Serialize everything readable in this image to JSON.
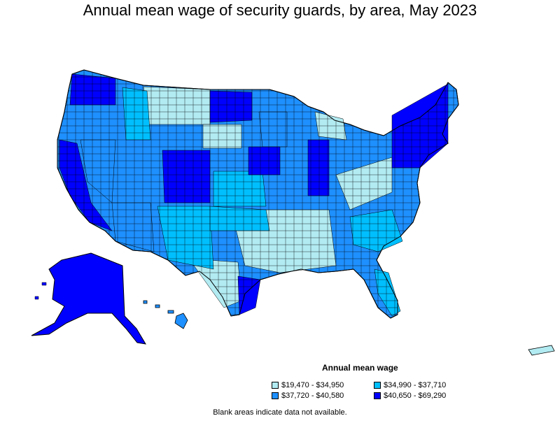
{
  "title": "Annual mean wage of security guards, by area, May 2023",
  "legend": {
    "title": "Annual mean wage",
    "items": [
      {
        "label": "$19,470 - $34,950",
        "color": "#b2ebf2"
      },
      {
        "label": "$34,990 - $37,710",
        "color": "#00bfff"
      },
      {
        "label": "$37,720 - $40,580",
        "color": "#1e90ff"
      },
      {
        "label": "$40,650 - $69,290",
        "color": "#0000ff"
      }
    ]
  },
  "note": "Blank areas indicate data not available.",
  "colors": {
    "outline": "#000000"
  }
}
